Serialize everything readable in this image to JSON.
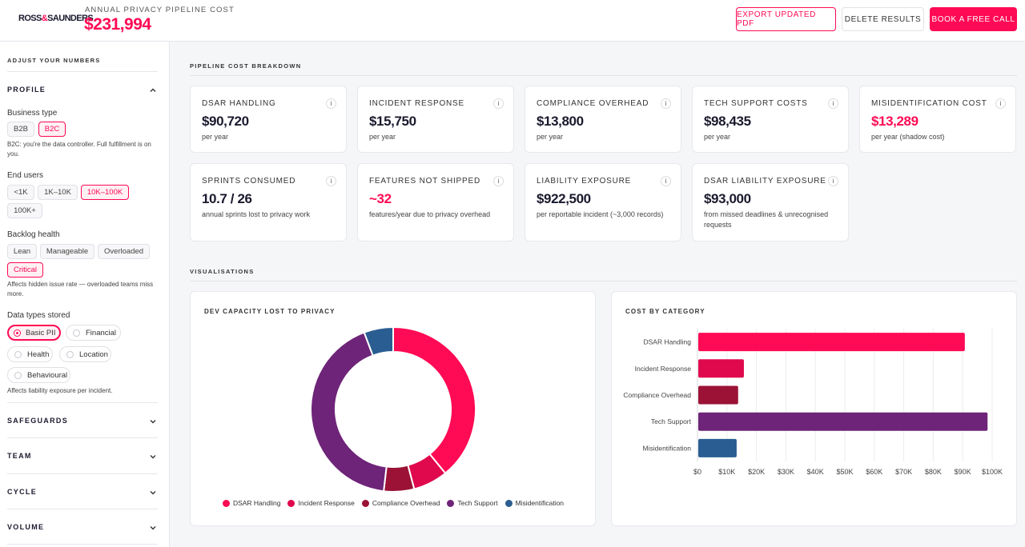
{
  "header": {
    "logo": "ROSS&SAUNDERS",
    "logo_left": "ROSS",
    "logo_amp": "&",
    "logo_right": "SAUNDERS",
    "label": "ANNUAL PRIVACY PIPELINE COST",
    "value": "$231,994",
    "export_label": "EXPORT UPDATED PDF",
    "delete_label": "DELETE RESULTS",
    "book_label": "BOOK A FREE CALL"
  },
  "sidebar": {
    "heading": "ADJUST YOUR NUMBERS",
    "profile": {
      "title": "PROFILE",
      "business_type": {
        "label": "Business type",
        "options": [
          "B2B",
          "B2C"
        ],
        "selected": "B2C",
        "note": "B2C: you're the data controller. Full fulfillment is on you."
      },
      "end_users": {
        "label": "End users",
        "options": [
          "<1K",
          "1K–10K",
          "10K–100K",
          "100K+"
        ],
        "selected": "10K–100K"
      },
      "backlog": {
        "label": "Backlog health",
        "options": [
          "Lean",
          "Manageable",
          "Overloaded",
          "Critical"
        ],
        "selected": "Critical",
        "note": "Affects hidden issue rate — overloaded teams miss more."
      },
      "data_types": {
        "label": "Data types stored",
        "options": [
          "Basic PII",
          "Financial",
          "Health",
          "Location",
          "Behavioural"
        ],
        "selected": [
          "Basic PII"
        ],
        "note": "Affects liability exposure per incident."
      }
    },
    "sections": [
      "SAFEGUARDS",
      "TEAM",
      "CYCLE",
      "VOLUME"
    ]
  },
  "breakdown": {
    "heading": "PIPELINE COST BREAKDOWN",
    "info_glyph": "i",
    "cards": [
      {
        "title": "DSAR HANDLING",
        "value": "$90,720",
        "sub": "per year"
      },
      {
        "title": "INCIDENT RESPONSE",
        "value": "$15,750",
        "sub": "per year"
      },
      {
        "title": "COMPLIANCE OVERHEAD",
        "value": "$13,800",
        "sub": "per year"
      },
      {
        "title": "TECH SUPPORT COSTS",
        "value": "$98,435",
        "sub": "per year"
      },
      {
        "title": "MISIDENTIFICATION COST",
        "value": "$13,289",
        "sub": "per year (shadow cost)",
        "accent": true
      },
      {
        "title": "SPRINTS CONSUMED",
        "value": "10.7 / 26",
        "sub": "annual sprints lost to privacy work"
      },
      {
        "title": "FEATURES NOT SHIPPED",
        "value": "~32",
        "sub": "features/year due to privacy overhead",
        "accent": true
      },
      {
        "title": "LIABILITY EXPOSURE",
        "value": "$922,500",
        "sub": "per reportable incident (~3,000 records)"
      },
      {
        "title": "DSAR LIABILITY EXPOSURE",
        "value": "$93,000",
        "sub": "from missed deadlines & unrecognised requests"
      }
    ]
  },
  "visuals": {
    "heading": "VISUALISATIONS"
  },
  "colors": {
    "accent": "#ff0a54",
    "dsar": "#ff0a54",
    "incident": "#e0094e",
    "compliance": "#9b1236",
    "tech": "#6e2478",
    "misid": "#2a5d91"
  },
  "chart_data": [
    {
      "type": "pie",
      "title": "DEV CAPACITY LOST TO PRIVACY",
      "labels": [
        "DSAR Handling",
        "Incident Response",
        "Compliance Overhead",
        "Tech Support",
        "Misidentification"
      ],
      "values": [
        90720,
        15750,
        13800,
        98435,
        13289
      ],
      "colors": [
        "#ff0a54",
        "#e0094e",
        "#9b1236",
        "#6e2478",
        "#2a5d91"
      ],
      "donut": true,
      "legend": "bottom"
    },
    {
      "type": "bar",
      "orientation": "horizontal",
      "title": "COST BY CATEGORY",
      "categories": [
        "DSAR Handling",
        "Incident Response",
        "Compliance Overhead",
        "Tech Support",
        "Misidentification"
      ],
      "values": [
        90720,
        15750,
        13800,
        98435,
        13289
      ],
      "colors": [
        "#ff0a54",
        "#e0094e",
        "#9b1236",
        "#6e2478",
        "#2a5d91"
      ],
      "xlim": [
        0,
        100000
      ],
      "xticks": [
        "$0",
        "$10K",
        "$20K",
        "$30K",
        "$40K",
        "$50K",
        "$60K",
        "$70K",
        "$80K",
        "$90K",
        "$100K"
      ],
      "grid": true
    }
  ]
}
